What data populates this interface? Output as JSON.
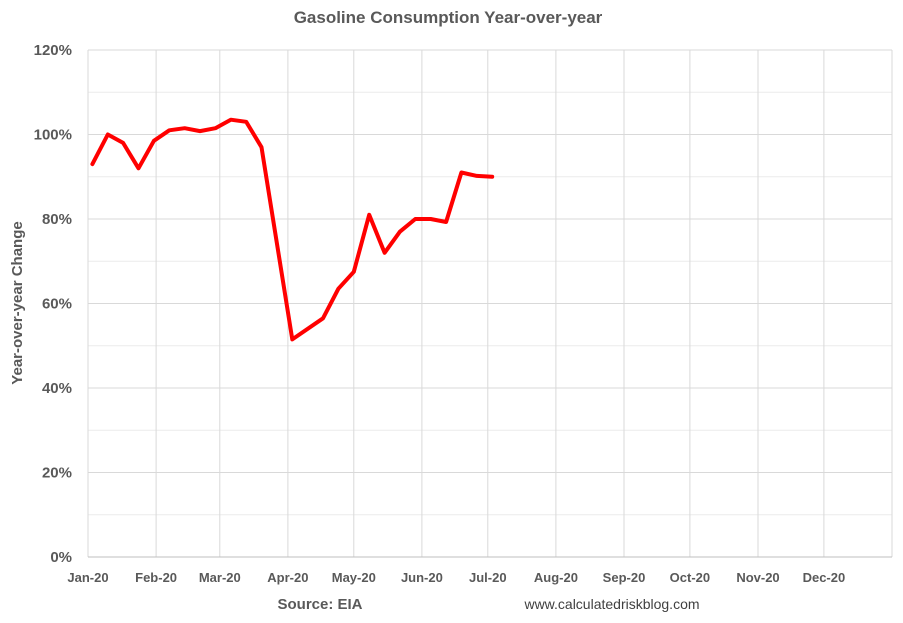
{
  "chart_data": {
    "type": "line",
    "title": "Gasoline Consumption Year-over-year",
    "xlabel": "",
    "ylabel": "Year-over-year Change",
    "ylim": [
      0,
      120
    ],
    "yticks": [
      "0%",
      "20%",
      "40%",
      "60%",
      "80%",
      "100%",
      "120%"
    ],
    "xlim": [
      "2020-01-01",
      "2020-12-31"
    ],
    "xticks": [
      "Jan-20",
      "Feb-20",
      "Mar-20",
      "Apr-20",
      "May-20",
      "Jun-20",
      "Jul-20",
      "Aug-20",
      "Sep-20",
      "Oct-20",
      "Nov-20",
      "Dec-20"
    ],
    "grid": true,
    "series": [
      {
        "color": "#ff0000",
        "x": [
          "2020-01-03",
          "2020-01-10",
          "2020-01-17",
          "2020-01-24",
          "2020-01-31",
          "2020-02-07",
          "2020-02-14",
          "2020-02-21",
          "2020-02-28",
          "2020-03-06",
          "2020-03-13",
          "2020-03-20",
          "2020-04-03",
          "2020-04-17",
          "2020-04-24",
          "2020-05-01",
          "2020-05-08",
          "2020-05-15",
          "2020-05-22",
          "2020-05-29",
          "2020-06-05",
          "2020-06-12",
          "2020-06-19",
          "2020-06-26",
          "2020-07-03"
        ],
        "values": [
          93,
          100,
          98,
          92,
          98.5,
          101,
          101.5,
          100.8,
          101.5,
          103.5,
          103,
          97,
          51.5,
          56.5,
          63.5,
          67.5,
          81,
          72,
          77,
          80,
          80,
          79.3,
          91,
          90.2,
          90
        ]
      }
    ]
  },
  "footer": {
    "source": "Source: EIA",
    "credit": "www.calculatedriskblog.com"
  }
}
